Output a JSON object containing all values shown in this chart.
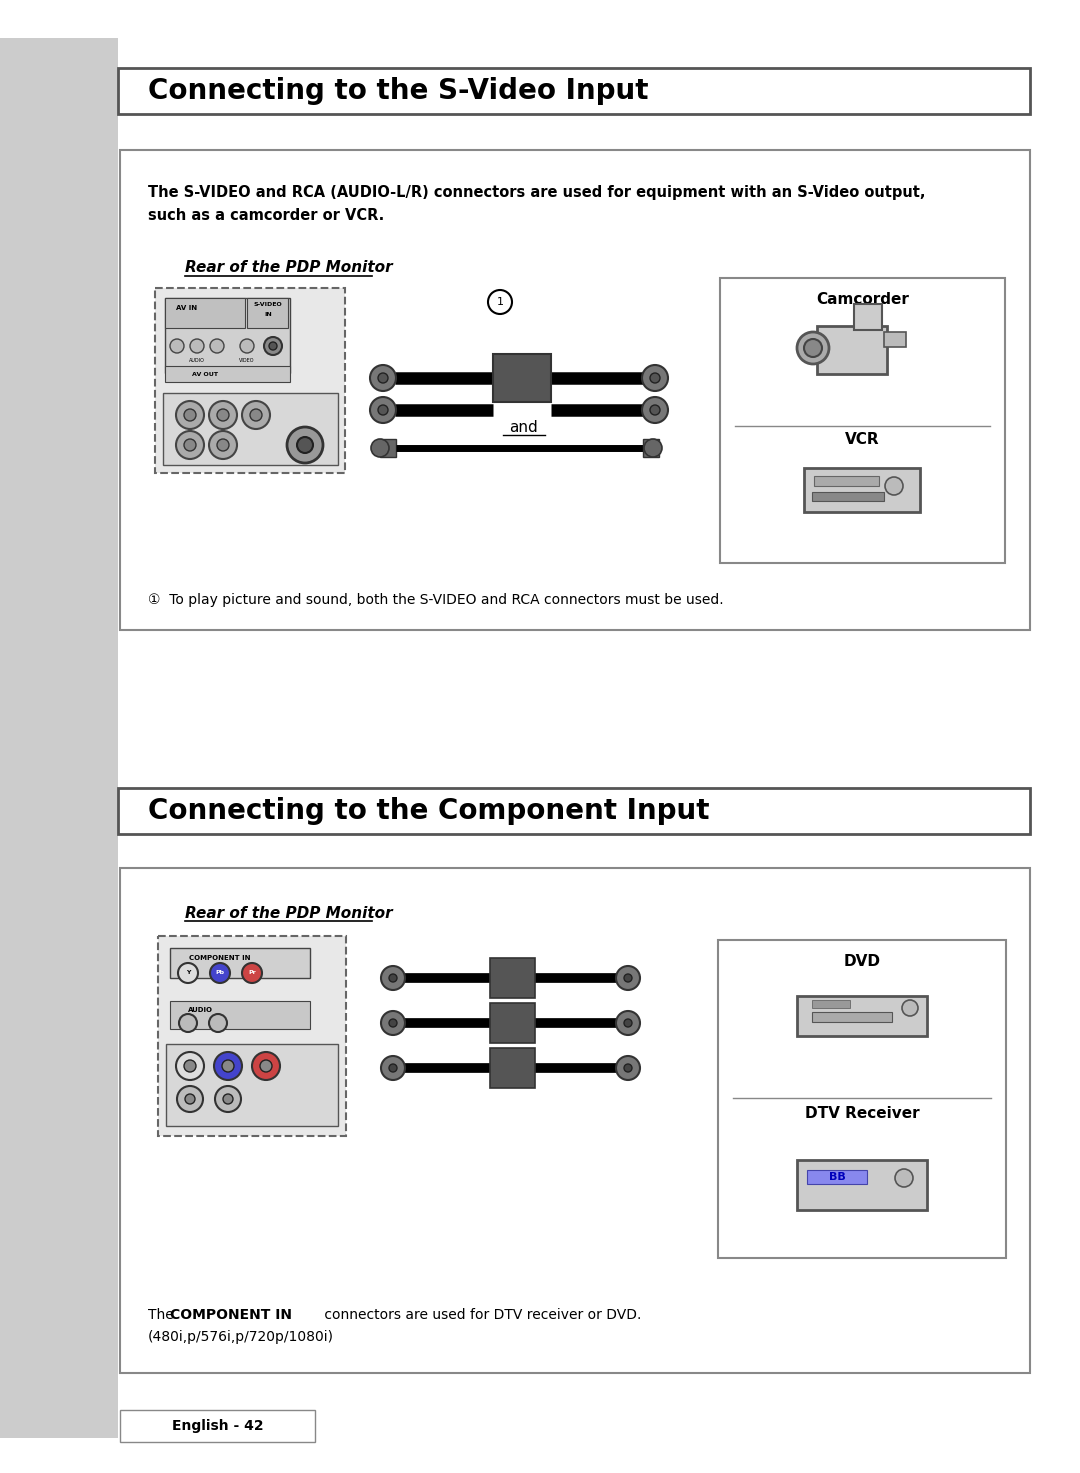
{
  "page_bg": "#ffffff",
  "sidebar_color": "#cccccc",
  "title1": "Connecting to the S-Video Input",
  "title2": "Connecting to the Component Input",
  "section1_desc_line1": "The S-VIDEO and RCA (AUDIO-L/R) connectors are used for equipment with an S-Video output,",
  "section1_desc_line2": "such as a camcorder or VCR.",
  "rear_label": "Rear of the PDP Monitor",
  "camcorder_label": "Camcorder",
  "vcr_label": "VCR",
  "footnote1": "①  To play picture and sound, both the S-VIDEO and RCA connectors must be used.",
  "section2_desc_pre": "The ",
  "section2_desc_bold": "COMPONENT IN",
  "section2_desc_post": " connectors are used for DTV receiver or DVD.",
  "section2_desc_line3": "(480i,p/576i,p/720p/1080i)",
  "dvd_label": "DVD",
  "dtv_label": "DTV Receiver",
  "footer": "English - 42",
  "and_text": "and"
}
